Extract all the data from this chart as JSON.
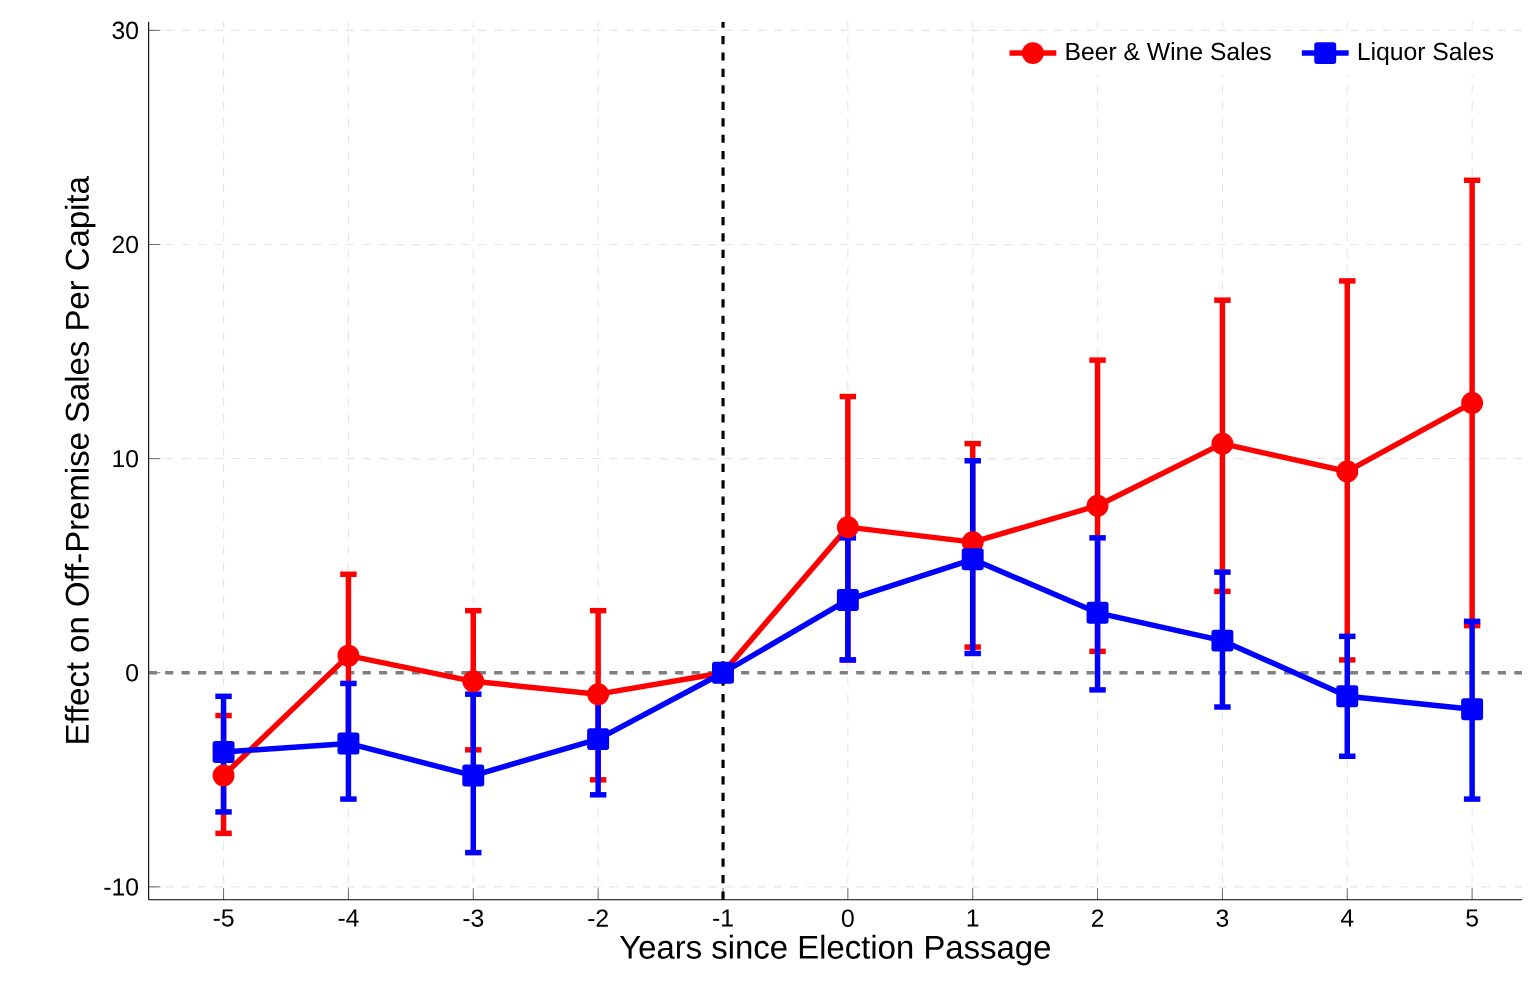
{
  "chart_data": {
    "type": "line",
    "xlabel": "Years since Election Passage",
    "ylabel": "Effect on Off-Premise Sales Per Capita",
    "x": [
      -5,
      -4,
      -3,
      -2,
      -1,
      0,
      1,
      2,
      3,
      4,
      5
    ],
    "xlim": [
      -5.6,
      5.4
    ],
    "ylim": [
      -10.6,
      30.4
    ],
    "xticks": [
      -5,
      -4,
      -3,
      -2,
      -1,
      0,
      1,
      2,
      3,
      4,
      5
    ],
    "yticks": [
      -10,
      0,
      10,
      20,
      30
    ],
    "grid": true,
    "legend": "top right",
    "series": [
      {
        "name": "Beer & Wine Sales",
        "color": "#ff0000",
        "marker": "circle",
        "values": [
          -4.8,
          0.8,
          -0.4,
          -1.0,
          0,
          6.8,
          6.1,
          7.8,
          10.7,
          9.4,
          12.6
        ],
        "errors": [
          [
            -7.5,
            -2.0
          ],
          [
            -3.1,
            4.6
          ],
          [
            -3.6,
            2.9
          ],
          [
            -5.0,
            2.9
          ],
          null,
          [
            0.6,
            12.9
          ],
          [
            1.2,
            10.7
          ],
          [
            1.0,
            14.6
          ],
          [
            3.8,
            17.4
          ],
          [
            0.6,
            18.3
          ],
          [
            2.2,
            23.0
          ]
        ]
      },
      {
        "name": "Liquor Sales",
        "color": "#0000ff",
        "marker": "square",
        "values": [
          -3.7,
          -3.3,
          -4.8,
          -3.1,
          0,
          3.4,
          5.3,
          2.8,
          1.5,
          -1.1,
          -1.7
        ],
        "errors": [
          [
            -6.5,
            -1.1
          ],
          [
            -5.9,
            -0.5
          ],
          [
            -8.4,
            -1.0
          ],
          [
            -5.7,
            -0.9
          ],
          null,
          [
            0.6,
            6.3
          ],
          [
            0.9,
            9.9
          ],
          [
            -0.8,
            6.3
          ],
          [
            -1.6,
            4.7
          ],
          [
            -3.9,
            1.7
          ],
          [
            -5.9,
            2.4
          ]
        ]
      }
    ],
    "ref_lines": [
      {
        "axis": "x",
        "value": -1,
        "color": "#000000",
        "line_style": "dashed"
      },
      {
        "axis": "y",
        "value": 0,
        "color": "#808080",
        "line_style": "dashed"
      }
    ]
  }
}
